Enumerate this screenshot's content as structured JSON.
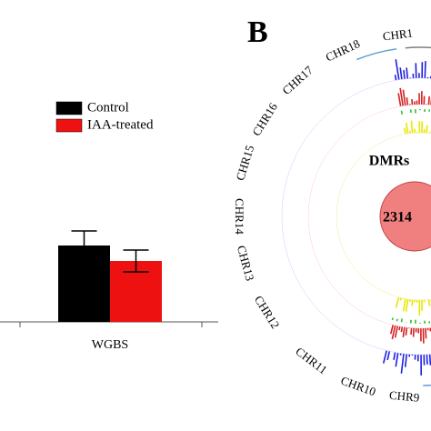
{
  "chart_data": {
    "type": "bar",
    "categories": [
      "WGBS"
    ],
    "series": [
      {
        "name": "Control",
        "color": "#000000",
        "values": [
          84
        ],
        "errors": [
          16
        ]
      },
      {
        "name": "IAA-treated",
        "color": "#ee1111",
        "values": [
          67
        ],
        "errors": [
          12
        ]
      }
    ],
    "ylim": [
      0,
      100
    ]
  },
  "circos": {
    "panel_label": "B",
    "center_title": "DMRs",
    "center_value": "2314",
    "chromosomes": [
      "CHR1",
      "CHR18",
      "CHR17",
      "CHR16",
      "CHR15",
      "CHR14",
      "CHR13",
      "CHR12",
      "CHR11",
      "CHR10",
      "CHR9"
    ]
  }
}
